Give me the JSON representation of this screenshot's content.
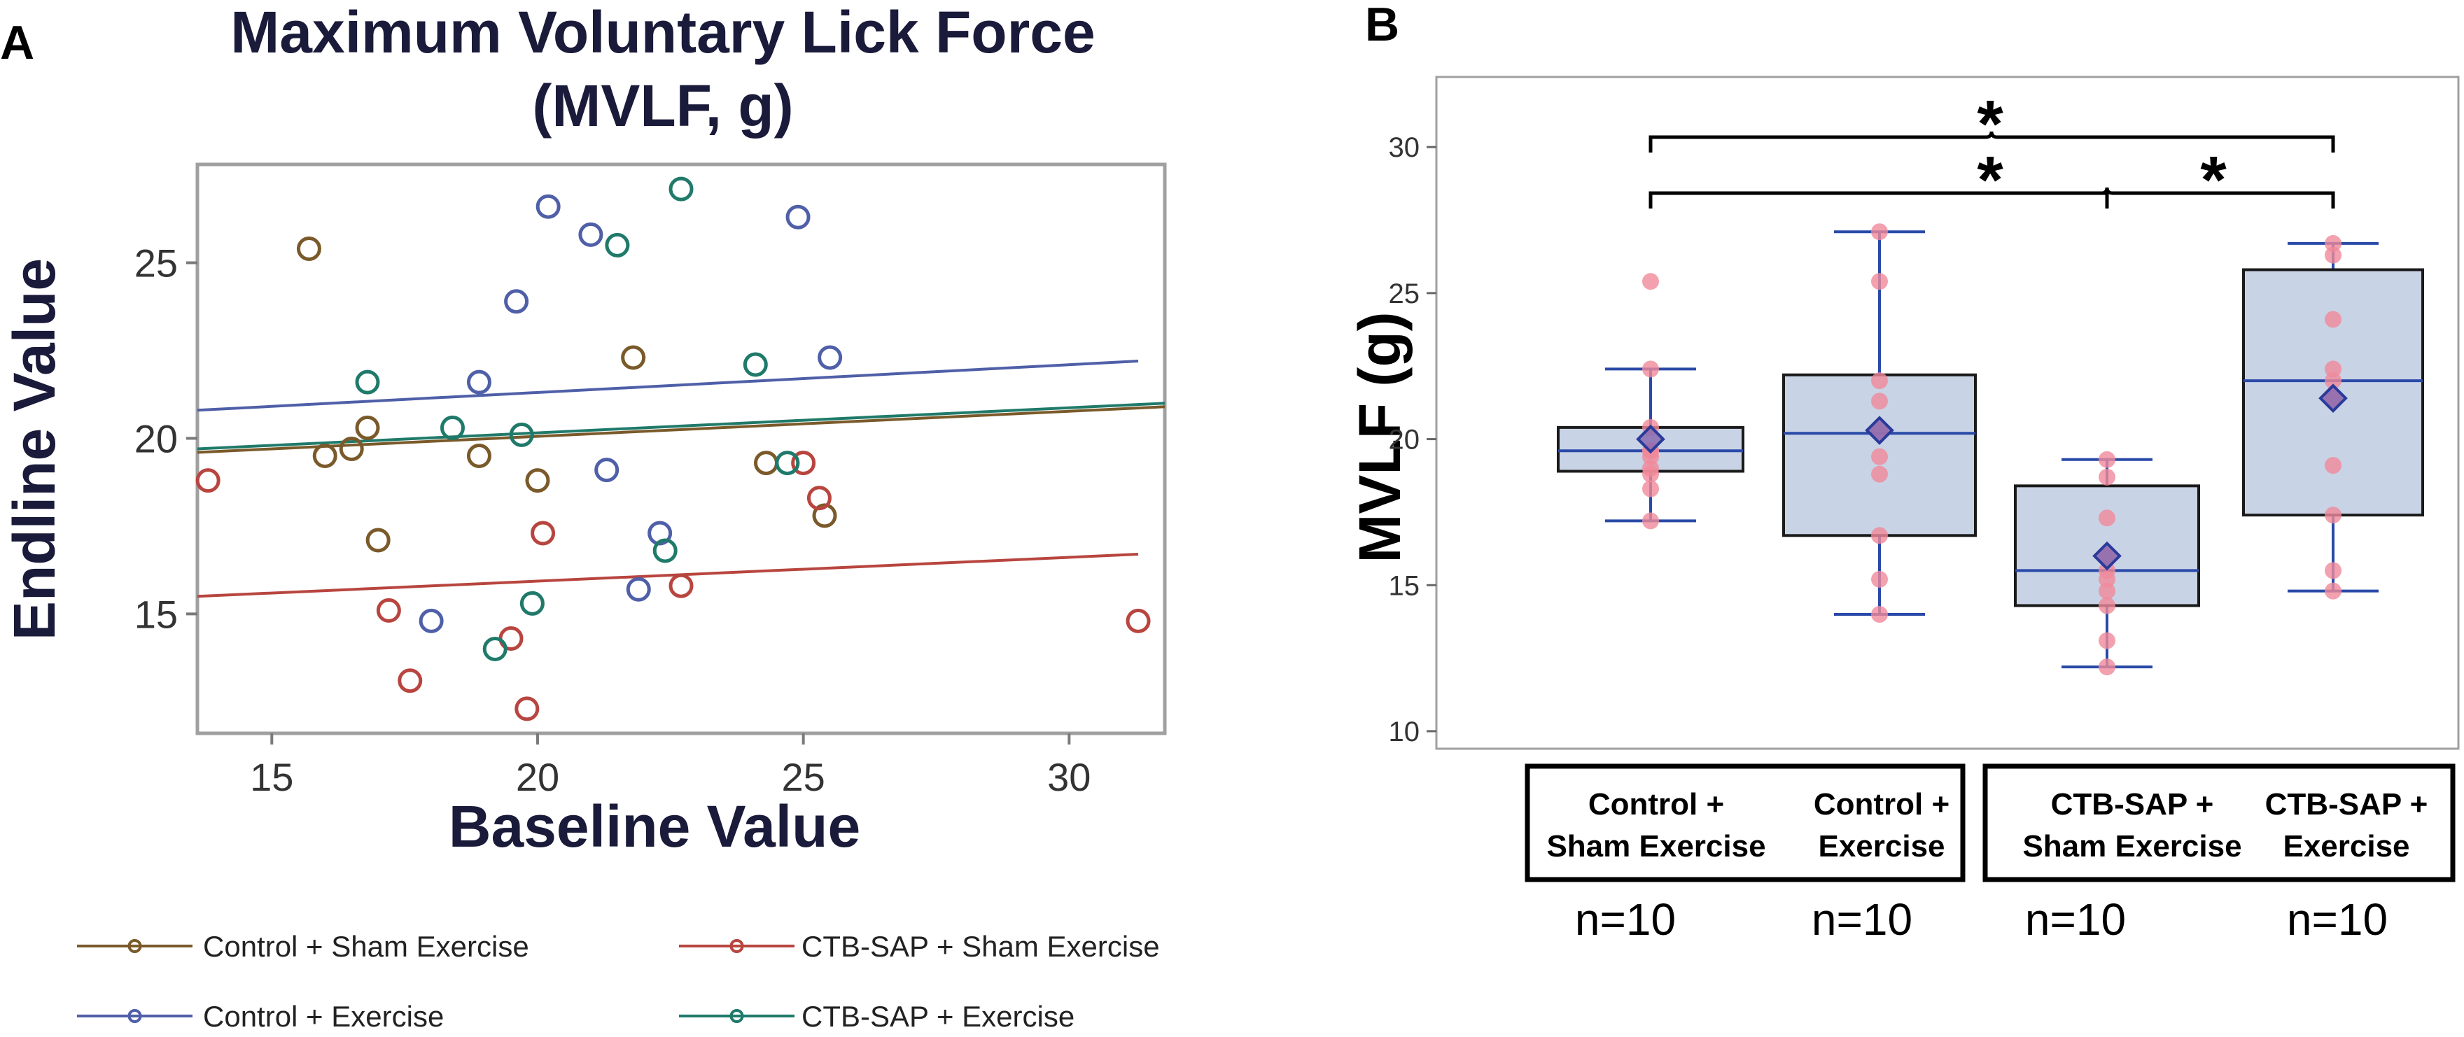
{
  "panel_a": {
    "label": "A",
    "title_line1": "Maximum Voluntary Lick Force",
    "title_line2": "(MVLF, g)",
    "legend": [
      {
        "name": "Control + Sham Exercise",
        "color": "#7a5a2a"
      },
      {
        "name": "CTB-SAP + Sham Exercise",
        "color": "#b8453f"
      },
      {
        "name": "Control + Exercise",
        "color": "#4f5fa8"
      },
      {
        "name": "CTB-SAP + Exercise",
        "color": "#1f7a6a"
      }
    ]
  },
  "panel_b": {
    "label": "B",
    "significance_marker": "*",
    "group_labels": [
      {
        "line1": "Control +",
        "line2": "Sham Exercise"
      },
      {
        "line1": "Control +",
        "line2": "Exercise"
      },
      {
        "line1": "CTB-SAP +",
        "line2": "Sham Exercise"
      },
      {
        "line1": "CTB-SAP +",
        "line2": "Exercise"
      }
    ],
    "n_labels": [
      "n=10",
      "n=10",
      "n=10",
      "n=10"
    ]
  },
  "chart_data": [
    {
      "type": "scatter",
      "title": "Maximum Voluntary Lick Force (MVLF, g)",
      "xlabel": "Baseline Value",
      "ylabel": "Endline Value",
      "xlim": [
        13.6,
        31.8
      ],
      "ylim": [
        11.6,
        27.8
      ],
      "xticks": [
        15,
        20,
        25,
        30
      ],
      "yticks": [
        15,
        20,
        25
      ],
      "series": [
        {
          "name": "Control + Sham Exercise",
          "color": "#7a5a2a",
          "points": [
            [
              15.7,
              25.4
            ],
            [
              21.8,
              22.3
            ],
            [
              16.8,
              20.3
            ],
            [
              16.0,
              19.5
            ],
            [
              16.5,
              19.7
            ],
            [
              18.9,
              19.5
            ],
            [
              20.0,
              18.8
            ],
            [
              17.0,
              17.1
            ],
            [
              24.3,
              19.3
            ],
            [
              25.4,
              17.8
            ]
          ],
          "fit": {
            "x": [
              13.6,
              31.8
            ],
            "y": [
              19.6,
              20.9
            ]
          }
        },
        {
          "name": "CTB-SAP + Sham Exercise",
          "color": "#b8453f",
          "points": [
            [
              13.8,
              18.8
            ],
            [
              25.0,
              19.3
            ],
            [
              25.3,
              18.3
            ],
            [
              20.1,
              17.3
            ],
            [
              22.7,
              15.8
            ],
            [
              17.2,
              15.1
            ],
            [
              19.5,
              14.3
            ],
            [
              17.6,
              13.1
            ],
            [
              19.8,
              12.3
            ],
            [
              31.3,
              14.8
            ]
          ],
          "fit": {
            "x": [
              13.6,
              31.3
            ],
            "y": [
              15.5,
              16.7
            ]
          }
        },
        {
          "name": "Control + Exercise",
          "color": "#4f5fa8",
          "points": [
            [
              20.2,
              26.6
            ],
            [
              21.0,
              25.8
            ],
            [
              24.9,
              26.3
            ],
            [
              19.6,
              23.9
            ],
            [
              25.5,
              22.3
            ],
            [
              18.9,
              21.6
            ],
            [
              21.3,
              19.1
            ],
            [
              22.3,
              17.3
            ],
            [
              21.9,
              15.7
            ],
            [
              18.0,
              14.8
            ]
          ],
          "fit": {
            "x": [
              13.6,
              31.3
            ],
            "y": [
              20.8,
              22.2
            ]
          }
        },
        {
          "name": "CTB-SAP + Exercise",
          "color": "#1f7a6a",
          "points": [
            [
              22.7,
              27.1
            ],
            [
              21.5,
              25.5
            ],
            [
              24.1,
              22.1
            ],
            [
              16.8,
              21.6
            ],
            [
              18.4,
              20.3
            ],
            [
              19.7,
              20.1
            ],
            [
              24.7,
              19.3
            ],
            [
              22.4,
              16.8
            ],
            [
              19.9,
              15.3
            ],
            [
              19.2,
              14.0
            ]
          ],
          "fit": {
            "x": [
              13.6,
              31.8
            ],
            "y": [
              19.7,
              21.0
            ]
          }
        }
      ]
    },
    {
      "type": "box",
      "ylabel": "MVLF (g)",
      "ylim": [
        9.4,
        32.4
      ],
      "yticks": [
        10,
        15,
        20,
        25,
        30
      ],
      "categories": [
        "Control + Sham Exercise",
        "Control + Exercise",
        "CTB-SAP + Sham Exercise",
        "CTB-SAP + Exercise"
      ],
      "boxes": [
        {
          "whisker_low": 17.2,
          "q1": 18.9,
          "median": 19.6,
          "q3": 20.4,
          "whisker_high": 22.4,
          "mean": 20.0,
          "points": [
            25.4,
            22.4,
            20.4,
            19.6,
            19.6,
            19.4,
            19.0,
            18.8,
            18.3,
            17.2
          ]
        },
        {
          "whisker_low": 14.0,
          "q1": 16.7,
          "median": 20.2,
          "q3": 22.2,
          "whisker_high": 27.1,
          "mean": 20.3,
          "points": [
            27.1,
            25.4,
            22.0,
            20.3,
            19.4,
            18.8,
            16.7,
            15.2,
            14.0,
            21.3
          ]
        },
        {
          "whisker_low": 12.2,
          "q1": 14.3,
          "median": 15.5,
          "q3": 18.4,
          "whisker_high": 19.3,
          "mean": 16.0,
          "points": [
            19.3,
            18.7,
            17.3,
            16.0,
            15.5,
            14.8,
            14.3,
            13.1,
            12.2,
            15.2
          ]
        },
        {
          "whisker_low": 14.8,
          "q1": 17.4,
          "median": 22.0,
          "q3": 25.8,
          "whisker_high": 26.7,
          "mean": 21.4,
          "points": [
            26.7,
            26.3,
            24.1,
            22.4,
            21.4,
            19.1,
            17.4,
            15.5,
            14.8,
            22.0
          ]
        }
      ],
      "significance": [
        {
          "from": "Control + Sham Exercise",
          "to": "CTB-SAP + Exercise",
          "label": "*"
        },
        {
          "from": "Control + Sham Exercise",
          "to": "CTB-SAP + Sham Exercise",
          "label": "*"
        },
        {
          "from": "CTB-SAP + Sham Exercise",
          "to": "CTB-SAP + Exercise",
          "label": "*"
        }
      ]
    }
  ]
}
